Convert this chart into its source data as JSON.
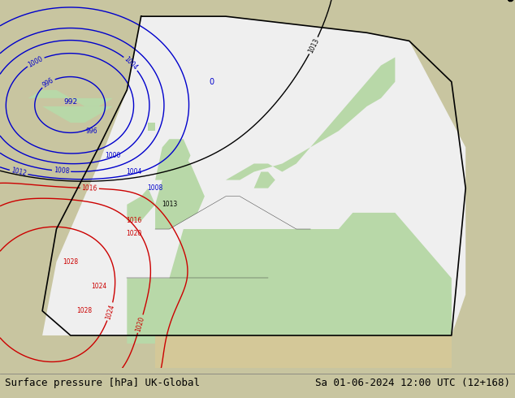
{
  "title_left": "Surface pressure [hPa] UK-Global",
  "title_right": "Sa 01-06-2024 12:00 UTC (12+168)",
  "bg_color": "#c8c5a0",
  "ocean_color": "#a8a8a8",
  "land_outside_color": "#c8c5a0",
  "domain_color": "#e8e8e8",
  "land_green_color": "#b8d8a8",
  "title_fontsize": 9,
  "title_color": "#000000",
  "contour_blue_color": "#0000cc",
  "contour_black_color": "#000000",
  "contour_red_color": "#cc0000",
  "fig_width": 6.34,
  "fig_height": 4.9,
  "xlim": [
    -28,
    45
  ],
  "ylim": [
    33,
    78
  ]
}
